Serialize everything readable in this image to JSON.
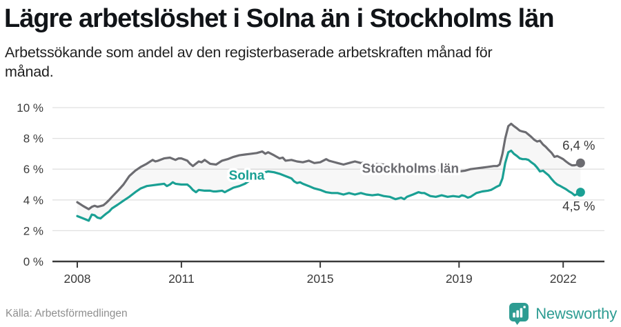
{
  "header": {
    "title": "Lägre arbetslöshet i Solna än i Stockholms län",
    "subtitle_line1": "Arbetssökande som andel av den registerbaserade arbetskraften månad för",
    "subtitle_line2": "månad."
  },
  "footer": {
    "source": "Källa: Arbetsförmedlingen",
    "brand": "Newsworthy",
    "brand_color": "#2d9c92"
  },
  "colors": {
    "stockholm_line": "#6c6c71",
    "solna_line": "#1aa094",
    "grid": "#e0e0e0",
    "axis": "#3a3a3a",
    "band_fill": "rgba(110,110,110,0.055)",
    "axis_text": "#3a3a3a"
  },
  "chart_data": {
    "type": "line",
    "title": "Lägre arbetslöshet i Solna än i Stockholms län",
    "subtitle": "Arbetssökande som andel av den registerbaserade arbetskraften månad för månad.",
    "xlabel": "",
    "ylabel": "",
    "x_ticks": [
      2008,
      2011,
      2015,
      2019,
      2022
    ],
    "x_tick_labels": [
      "2008",
      "2011",
      "2015",
      "2019",
      "2022"
    ],
    "y_ticks": [
      0,
      2,
      4,
      6,
      8,
      10
    ],
    "y_tick_labels": [
      "0 %",
      "2 %",
      "4 %",
      "6 %",
      "8 %",
      "10 %"
    ],
    "ylim": [
      0,
      10
    ],
    "grid": "horizontal",
    "band_between_series": true,
    "legend_position": "inline-labels",
    "series": [
      {
        "name": "Stockholms län",
        "color": "#6c6c71",
        "end_value": 6.4,
        "end_label": "6,4 %",
        "points": [
          [
            2008.0,
            3.85
          ],
          [
            2008.17,
            3.6
          ],
          [
            2008.33,
            3.4
          ],
          [
            2008.42,
            3.55
          ],
          [
            2008.5,
            3.62
          ],
          [
            2008.58,
            3.55
          ],
          [
            2008.67,
            3.6
          ],
          [
            2008.75,
            3.65
          ],
          [
            2008.83,
            3.8
          ],
          [
            2008.92,
            4.0
          ],
          [
            2009.0,
            4.2
          ],
          [
            2009.17,
            4.6
          ],
          [
            2009.33,
            5.0
          ],
          [
            2009.5,
            5.55
          ],
          [
            2009.67,
            5.9
          ],
          [
            2009.83,
            6.15
          ],
          [
            2010.0,
            6.35
          ],
          [
            2010.17,
            6.6
          ],
          [
            2010.25,
            6.5
          ],
          [
            2010.33,
            6.55
          ],
          [
            2010.5,
            6.7
          ],
          [
            2010.67,
            6.75
          ],
          [
            2010.83,
            6.6
          ],
          [
            2010.92,
            6.7
          ],
          [
            2011.0,
            6.7
          ],
          [
            2011.17,
            6.55
          ],
          [
            2011.25,
            6.35
          ],
          [
            2011.33,
            6.2
          ],
          [
            2011.5,
            6.5
          ],
          [
            2011.58,
            6.45
          ],
          [
            2011.67,
            6.6
          ],
          [
            2011.83,
            6.35
          ],
          [
            2012.0,
            6.3
          ],
          [
            2012.17,
            6.55
          ],
          [
            2012.33,
            6.65
          ],
          [
            2012.5,
            6.8
          ],
          [
            2012.67,
            6.9
          ],
          [
            2012.83,
            6.95
          ],
          [
            2013.0,
            7.0
          ],
          [
            2013.17,
            7.05
          ],
          [
            2013.33,
            7.15
          ],
          [
            2013.42,
            7.0
          ],
          [
            2013.5,
            7.1
          ],
          [
            2013.67,
            6.9
          ],
          [
            2013.83,
            6.7
          ],
          [
            2013.92,
            6.75
          ],
          [
            2014.0,
            6.55
          ],
          [
            2014.17,
            6.6
          ],
          [
            2014.33,
            6.5
          ],
          [
            2014.5,
            6.45
          ],
          [
            2014.67,
            6.55
          ],
          [
            2014.83,
            6.4
          ],
          [
            2015.0,
            6.45
          ],
          [
            2015.17,
            6.65
          ],
          [
            2015.25,
            6.55
          ],
          [
            2015.33,
            6.5
          ],
          [
            2015.5,
            6.4
          ],
          [
            2015.67,
            6.3
          ],
          [
            2015.83,
            6.4
          ],
          [
            2016.0,
            6.5
          ],
          [
            2016.17,
            6.4
          ],
          [
            2016.33,
            6.45
          ],
          [
            2016.5,
            6.35
          ],
          [
            2016.83,
            6.3
          ],
          [
            2017.17,
            6.2
          ],
          [
            2017.5,
            6.1
          ],
          [
            2017.83,
            6.0
          ],
          [
            2018.17,
            5.95
          ],
          [
            2018.5,
            5.9
          ],
          [
            2018.83,
            5.85
          ],
          [
            2019.0,
            5.85
          ],
          [
            2019.17,
            5.9
          ],
          [
            2019.33,
            6.0
          ],
          [
            2019.5,
            6.05
          ],
          [
            2019.67,
            6.1
          ],
          [
            2019.83,
            6.15
          ],
          [
            2020.0,
            6.2
          ],
          [
            2020.1,
            6.2
          ],
          [
            2020.17,
            6.3
          ],
          [
            2020.25,
            7.0
          ],
          [
            2020.33,
            8.0
          ],
          [
            2020.42,
            8.8
          ],
          [
            2020.5,
            8.95
          ],
          [
            2020.58,
            8.8
          ],
          [
            2020.67,
            8.65
          ],
          [
            2020.75,
            8.5
          ],
          [
            2020.83,
            8.45
          ],
          [
            2020.92,
            8.4
          ],
          [
            2021.0,
            8.25
          ],
          [
            2021.08,
            8.1
          ],
          [
            2021.17,
            7.9
          ],
          [
            2021.25,
            7.8
          ],
          [
            2021.33,
            7.85
          ],
          [
            2021.42,
            7.6
          ],
          [
            2021.5,
            7.45
          ],
          [
            2021.58,
            7.25
          ],
          [
            2021.67,
            7.05
          ],
          [
            2021.75,
            6.8
          ],
          [
            2021.83,
            6.85
          ],
          [
            2021.92,
            6.75
          ],
          [
            2022.0,
            6.65
          ],
          [
            2022.08,
            6.5
          ],
          [
            2022.17,
            6.35
          ],
          [
            2022.25,
            6.25
          ],
          [
            2022.33,
            6.25
          ],
          [
            2022.42,
            6.3
          ],
          [
            2022.5,
            6.4
          ]
        ]
      },
      {
        "name": "Solna",
        "color": "#1aa094",
        "end_value": 4.5,
        "end_label": "4,5 %",
        "points": [
          [
            2008.0,
            2.95
          ],
          [
            2008.17,
            2.8
          ],
          [
            2008.33,
            2.65
          ],
          [
            2008.42,
            3.05
          ],
          [
            2008.5,
            3.0
          ],
          [
            2008.58,
            2.85
          ],
          [
            2008.67,
            2.8
          ],
          [
            2008.75,
            2.95
          ],
          [
            2008.83,
            3.1
          ],
          [
            2008.92,
            3.25
          ],
          [
            2009.0,
            3.45
          ],
          [
            2009.17,
            3.7
          ],
          [
            2009.33,
            3.95
          ],
          [
            2009.5,
            4.2
          ],
          [
            2009.67,
            4.5
          ],
          [
            2009.83,
            4.75
          ],
          [
            2010.0,
            4.9
          ],
          [
            2010.17,
            4.95
          ],
          [
            2010.33,
            5.0
          ],
          [
            2010.5,
            5.05
          ],
          [
            2010.58,
            4.9
          ],
          [
            2010.67,
            5.0
          ],
          [
            2010.75,
            5.15
          ],
          [
            2010.83,
            5.05
          ],
          [
            2011.0,
            5.0
          ],
          [
            2011.17,
            5.0
          ],
          [
            2011.25,
            4.85
          ],
          [
            2011.33,
            4.65
          ],
          [
            2011.42,
            4.5
          ],
          [
            2011.5,
            4.65
          ],
          [
            2011.67,
            4.6
          ],
          [
            2011.83,
            4.6
          ],
          [
            2011.92,
            4.55
          ],
          [
            2012.0,
            4.55
          ],
          [
            2012.17,
            4.6
          ],
          [
            2012.25,
            4.5
          ],
          [
            2012.33,
            4.6
          ],
          [
            2012.5,
            4.8
          ],
          [
            2012.67,
            4.9
          ],
          [
            2012.83,
            5.05
          ],
          [
            2013.0,
            5.3
          ],
          [
            2013.17,
            5.55
          ],
          [
            2013.33,
            5.75
          ],
          [
            2013.5,
            5.85
          ],
          [
            2013.67,
            5.8
          ],
          [
            2013.83,
            5.7
          ],
          [
            2014.0,
            5.55
          ],
          [
            2014.17,
            5.4
          ],
          [
            2014.25,
            5.2
          ],
          [
            2014.33,
            5.1
          ],
          [
            2014.42,
            5.15
          ],
          [
            2014.5,
            5.05
          ],
          [
            2014.67,
            4.9
          ],
          [
            2014.83,
            4.75
          ],
          [
            2015.0,
            4.65
          ],
          [
            2015.17,
            4.5
          ],
          [
            2015.33,
            4.45
          ],
          [
            2015.5,
            4.45
          ],
          [
            2015.67,
            4.35
          ],
          [
            2015.83,
            4.45
          ],
          [
            2016.0,
            4.35
          ],
          [
            2016.17,
            4.45
          ],
          [
            2016.33,
            4.35
          ],
          [
            2016.5,
            4.3
          ],
          [
            2016.67,
            4.35
          ],
          [
            2016.83,
            4.25
          ],
          [
            2017.0,
            4.2
          ],
          [
            2017.17,
            4.05
          ],
          [
            2017.33,
            4.15
          ],
          [
            2017.42,
            4.05
          ],
          [
            2017.5,
            4.2
          ],
          [
            2017.67,
            4.35
          ],
          [
            2017.83,
            4.5
          ],
          [
            2017.92,
            4.45
          ],
          [
            2018.0,
            4.45
          ],
          [
            2018.17,
            4.25
          ],
          [
            2018.33,
            4.2
          ],
          [
            2018.5,
            4.3
          ],
          [
            2018.67,
            4.2
          ],
          [
            2018.83,
            4.25
          ],
          [
            2019.0,
            4.2
          ],
          [
            2019.08,
            4.3
          ],
          [
            2019.17,
            4.25
          ],
          [
            2019.25,
            4.15
          ],
          [
            2019.33,
            4.2
          ],
          [
            2019.5,
            4.45
          ],
          [
            2019.67,
            4.55
          ],
          [
            2019.83,
            4.6
          ],
          [
            2019.92,
            4.65
          ],
          [
            2020.0,
            4.75
          ],
          [
            2020.08,
            4.85
          ],
          [
            2020.17,
            4.95
          ],
          [
            2020.25,
            5.4
          ],
          [
            2020.33,
            6.4
          ],
          [
            2020.42,
            7.1
          ],
          [
            2020.5,
            7.2
          ],
          [
            2020.58,
            7.0
          ],
          [
            2020.67,
            6.85
          ],
          [
            2020.75,
            6.7
          ],
          [
            2020.83,
            6.65
          ],
          [
            2020.92,
            6.65
          ],
          [
            2021.0,
            6.6
          ],
          [
            2021.08,
            6.45
          ],
          [
            2021.17,
            6.3
          ],
          [
            2021.25,
            6.1
          ],
          [
            2021.33,
            5.85
          ],
          [
            2021.42,
            5.9
          ],
          [
            2021.5,
            5.75
          ],
          [
            2021.58,
            5.6
          ],
          [
            2021.67,
            5.35
          ],
          [
            2021.75,
            5.15
          ],
          [
            2021.83,
            5.0
          ],
          [
            2021.92,
            4.9
          ],
          [
            2022.0,
            4.8
          ],
          [
            2022.08,
            4.7
          ],
          [
            2022.17,
            4.55
          ],
          [
            2022.25,
            4.45
          ],
          [
            2022.33,
            4.3
          ],
          [
            2022.42,
            4.4
          ],
          [
            2022.5,
            4.5
          ]
        ]
      }
    ],
    "annotations": [
      {
        "text": "Solna",
        "x": 2012.88,
        "y": 5.6,
        "color": "#1aa094",
        "bold": true,
        "halo": true
      },
      {
        "text": "Stockholms län",
        "x": 2017.6,
        "y": 6.05,
        "color": "#6c6c71",
        "bold": true,
        "halo": true
      },
      {
        "text": "6,4 %",
        "x": 2022.45,
        "y": 7.55,
        "color": "#3a3a3a",
        "bold": false,
        "halo": false
      },
      {
        "text": "4,5 %",
        "x": 2022.45,
        "y": 3.6,
        "color": "#3a3a3a",
        "bold": false,
        "halo": false
      }
    ]
  }
}
